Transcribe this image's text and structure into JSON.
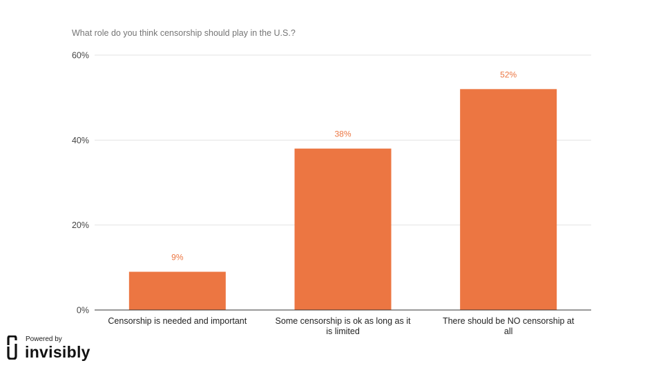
{
  "chart_data": {
    "type": "bar",
    "title": "What role do you think censorship should play in the U.S.?",
    "categories": [
      [
        "Censorship is needed and important"
      ],
      [
        "Some censorship is ok as long as it",
        "is limited"
      ],
      [
        "There should be NO censorship at",
        "all"
      ]
    ],
    "values": [
      9,
      38,
      52
    ],
    "data_labels": [
      "9%",
      "38%",
      "52%"
    ],
    "y_ticks": [
      "0%",
      "20%",
      "40%",
      "60%"
    ],
    "ylim": [
      0,
      60
    ],
    "grid": true,
    "legend": "none",
    "bar_color": "#ec7642",
    "label_color": "#ec7642"
  },
  "branding": {
    "powered_by": "Powered by",
    "name": "invisibly"
  }
}
